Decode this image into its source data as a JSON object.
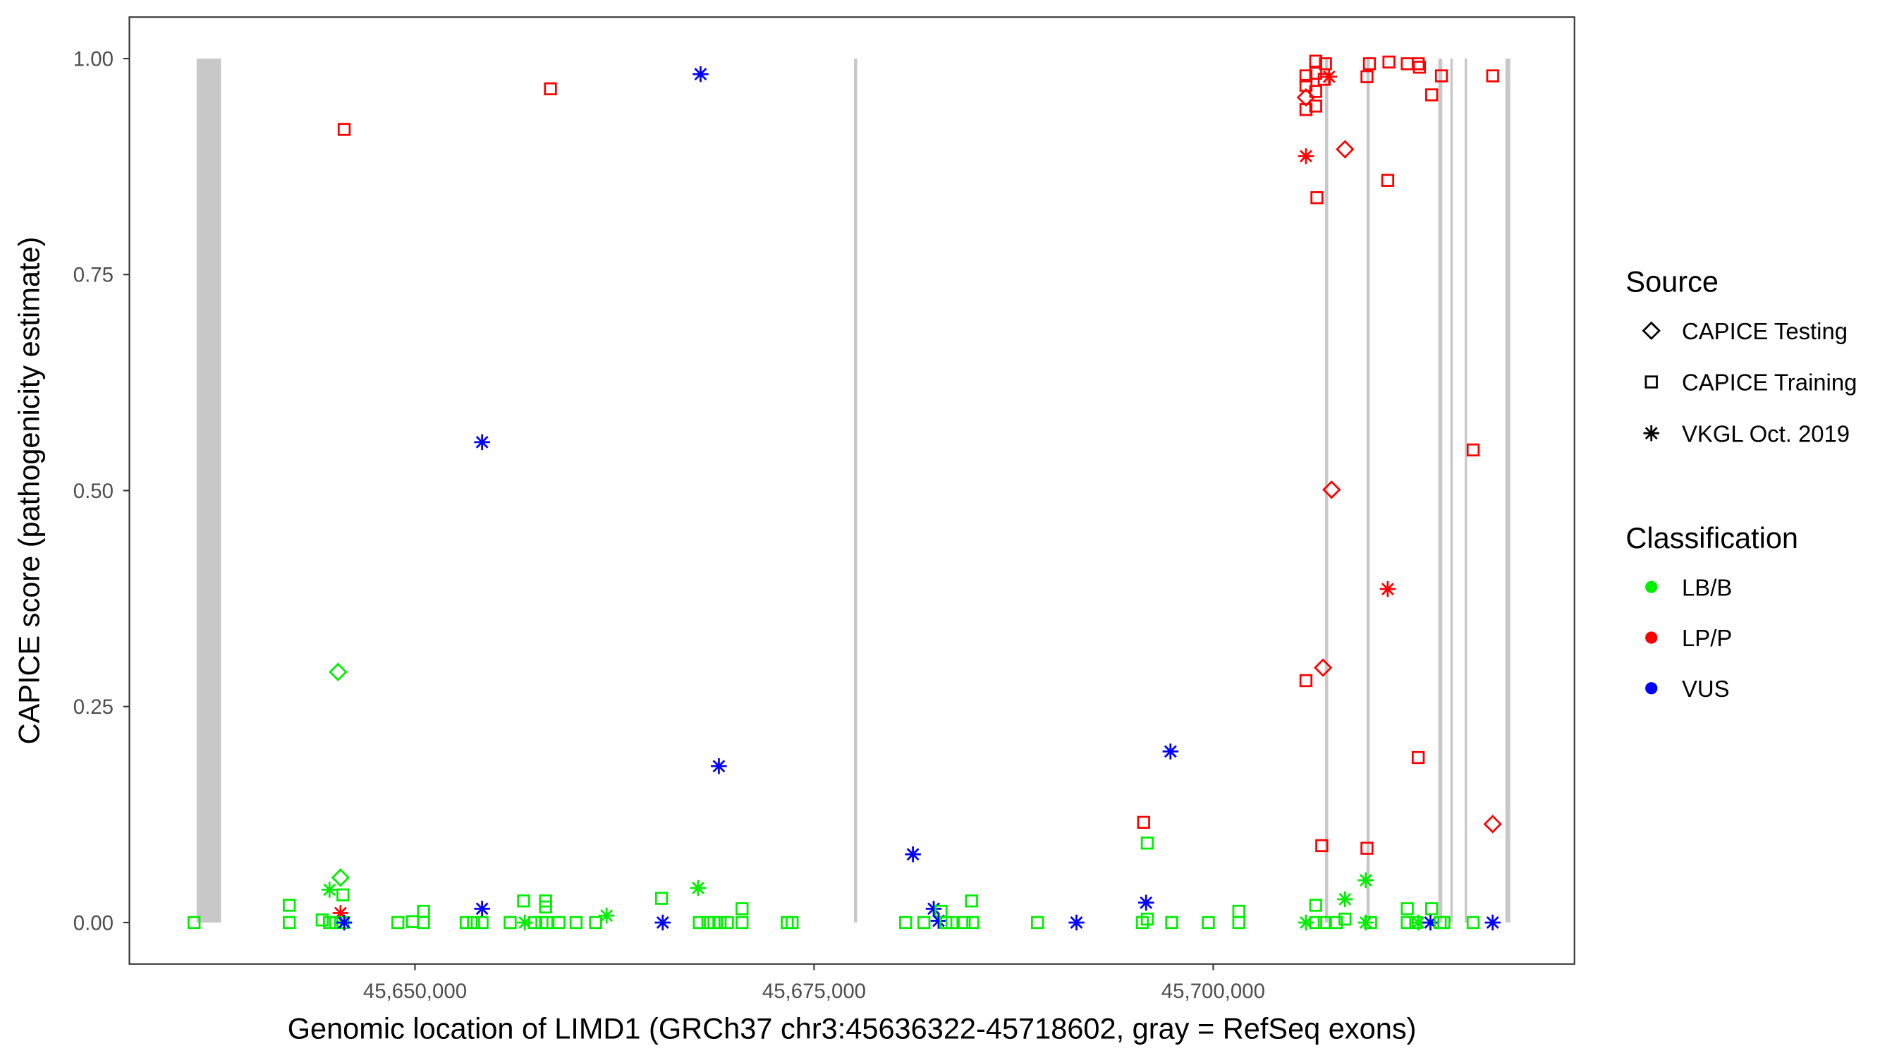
{
  "chart_data": {
    "type": "scatter",
    "xlabel": "Genomic location of LIMD1 (GRCh37 chr3:45636322-45718602, gray = RefSeq exons)",
    "ylabel": "CAPICE score (pathogenicity estimate)",
    "xlim": [
      45632500,
      45723000
    ],
    "ylim": [
      -0.046,
      1.05
    ],
    "x_ticks": [
      45650000,
      45675000,
      45700000
    ],
    "x_tick_labels": [
      "45,650,000",
      "45,675,000",
      "45,700,000"
    ],
    "y_ticks": [
      0,
      0.25,
      0.5,
      0.75,
      1.0
    ],
    "y_tick_labels": [
      "0.00",
      "0.25",
      "0.50",
      "0.75",
      "1.00"
    ],
    "grid": false,
    "exons": [
      [
        45636322,
        45637850
      ],
      [
        45677500,
        45677700
      ],
      [
        45707000,
        45707200
      ],
      [
        45709600,
        45709800
      ],
      [
        45714100,
        45714350
      ],
      [
        45714850,
        45715000
      ],
      [
        45715750,
        45715900
      ],
      [
        45718300,
        45718602
      ]
    ],
    "legend_placement": "right",
    "legend": {
      "source_title": "Source",
      "sources": [
        {
          "key": "Testing",
          "label": "CAPICE Testing",
          "shape": "diamond"
        },
        {
          "key": "Training",
          "label": "CAPICE Training",
          "shape": "square"
        },
        {
          "key": "VKGL",
          "label": "VKGL Oct. 2019",
          "shape": "asterisk"
        }
      ],
      "class_title": "Classification",
      "classes": [
        {
          "key": "LB/B",
          "label": "LB/B",
          "color": "#00EE00"
        },
        {
          "key": "LP/P",
          "label": "LP/P",
          "color": "#FF0000"
        },
        {
          "key": "VUS",
          "label": "VUS",
          "color": "#0000FF"
        }
      ]
    },
    "points": [
      {
        "x": 45645566,
        "y": 0.918,
        "s": "Training",
        "c": "LP/P"
      },
      {
        "x": 45658486,
        "y": 0.965,
        "s": "Training",
        "c": "LP/P"
      },
      {
        "x": 45667889,
        "y": 0.982,
        "s": "VKGL",
        "c": "VUS"
      },
      {
        "x": 45654205,
        "y": 0.556,
        "s": "VKGL",
        "c": "VUS"
      },
      {
        "x": 45645184,
        "y": 0.29,
        "s": "Testing",
        "c": "LB/B"
      },
      {
        "x": 45669036,
        "y": 0.181,
        "s": "VKGL",
        "c": "VUS"
      },
      {
        "x": 45681192,
        "y": 0.079,
        "s": "VKGL",
        "c": "VUS"
      },
      {
        "x": 45697323,
        "y": 0.198,
        "s": "VKGL",
        "c": "VUS"
      },
      {
        "x": 45695641,
        "y": 0.116,
        "s": "Training",
        "c": "LP/P"
      },
      {
        "x": 45695870,
        "y": 0.092,
        "s": "Training",
        "c": "LB/B"
      },
      {
        "x": 45695794,
        "y": 0.023,
        "s": "VKGL",
        "c": "VUS"
      },
      {
        "x": 45705809,
        "y": 0.28,
        "s": "Training",
        "c": "LP/P"
      },
      {
        "x": 45706879,
        "y": 0.295,
        "s": "Testing",
        "c": "LP/P"
      },
      {
        "x": 45707414,
        "y": 0.501,
        "s": "Testing",
        "c": "LP/P"
      },
      {
        "x": 45710931,
        "y": 0.386,
        "s": "VKGL",
        "c": "LP/P"
      },
      {
        "x": 45712842,
        "y": 0.191,
        "s": "Training",
        "c": "LP/P"
      },
      {
        "x": 45716282,
        "y": 0.547,
        "s": "Training",
        "c": "LP/P"
      },
      {
        "x": 45717505,
        "y": 0.114,
        "s": "Testing",
        "c": "LP/P"
      },
      {
        "x": 45706802,
        "y": 0.089,
        "s": "Training",
        "c": "LP/P"
      },
      {
        "x": 45709631,
        "y": 0.086,
        "s": "Training",
        "c": "LP/P"
      },
      {
        "x": 45709555,
        "y": 0.049,
        "s": "VKGL",
        "c": "LB/B"
      },
      {
        "x": 45708255,
        "y": 0.027,
        "s": "VKGL",
        "c": "LB/B"
      },
      {
        "x": 45706420,
        "y": 0.02,
        "s": "Training",
        "c": "LB/B"
      },
      {
        "x": 45712154,
        "y": 0.016,
        "s": "Training",
        "c": "LB/B"
      },
      {
        "x": 45713683,
        "y": 0.016,
        "s": "Training",
        "c": "LB/B"
      },
      {
        "x": 45701604,
        "y": 0.013,
        "s": "Training",
        "c": "LB/B"
      },
      {
        "x": 45682491,
        "y": 0.016,
        "s": "VKGL",
        "c": "VUS"
      },
      {
        "x": 45682950,
        "y": 0.013,
        "s": "Training",
        "c": "LB/B"
      },
      {
        "x": 45684861,
        "y": 0.025,
        "s": "Training",
        "c": "LB/B"
      },
      {
        "x": 45667736,
        "y": 0.04,
        "s": "VKGL",
        "c": "LB/B"
      },
      {
        "x": 45665443,
        "y": 0.028,
        "s": "Training",
        "c": "LB/B"
      },
      {
        "x": 45670489,
        "y": 0.016,
        "s": "Training",
        "c": "LB/B"
      },
      {
        "x": 45654205,
        "y": 0.016,
        "s": "VKGL",
        "c": "VUS"
      },
      {
        "x": 45650535,
        "y": 0.013,
        "s": "Training",
        "c": "LB/B"
      },
      {
        "x": 45656804,
        "y": 0.025,
        "s": "Training",
        "c": "LB/B"
      },
      {
        "x": 45658180,
        "y": 0.025,
        "s": "Training",
        "c": "LB/B"
      },
      {
        "x": 45658180,
        "y": 0.018,
        "s": "Training",
        "c": "LB/B"
      },
      {
        "x": 45642126,
        "y": 0.02,
        "s": "Training",
        "c": "LB/B"
      },
      {
        "x": 45645337,
        "y": 0.052,
        "s": "Testing",
        "c": "LB/B"
      },
      {
        "x": 45644648,
        "y": 0.038,
        "s": "VKGL",
        "c": "LB/B"
      },
      {
        "x": 45645489,
        "y": 0.032,
        "s": "Training",
        "c": "LB/B"
      },
      {
        "x": 45645337,
        "y": 0.011,
        "s": "VKGL",
        "c": "LP/P"
      },
      {
        "x": 45662003,
        "y": 0.008,
        "s": "VKGL",
        "c": "LB/B"
      },
      {
        "x": 45705809,
        "y": 0.98,
        "s": "Training",
        "c": "LP/P"
      },
      {
        "x": 45705809,
        "y": 0.969,
        "s": "Training",
        "c": "LP/P"
      },
      {
        "x": 45706420,
        "y": 0.997,
        "s": "Training",
        "c": "LP/P"
      },
      {
        "x": 45707032,
        "y": 0.994,
        "s": "Training",
        "c": "LP/P"
      },
      {
        "x": 45706420,
        "y": 0.983,
        "s": "Training",
        "c": "LP/P"
      },
      {
        "x": 45706420,
        "y": 0.962,
        "s": "Training",
        "c": "LP/P"
      },
      {
        "x": 45706420,
        "y": 0.945,
        "s": "Training",
        "c": "LP/P"
      },
      {
        "x": 45705809,
        "y": 0.941,
        "s": "Training",
        "c": "LP/P"
      },
      {
        "x": 45706955,
        "y": 0.976,
        "s": "Training",
        "c": "LP/P"
      },
      {
        "x": 45709784,
        "y": 0.994,
        "s": "Training",
        "c": "LP/P"
      },
      {
        "x": 45709631,
        "y": 0.979,
        "s": "Training",
        "c": "LP/P"
      },
      {
        "x": 45711007,
        "y": 0.996,
        "s": "Training",
        "c": "LP/P"
      },
      {
        "x": 45712154,
        "y": 0.994,
        "s": "Training",
        "c": "LP/P"
      },
      {
        "x": 45712842,
        "y": 0.994,
        "s": "Training",
        "c": "LP/P"
      },
      {
        "x": 45712918,
        "y": 0.99,
        "s": "Training",
        "c": "LP/P"
      },
      {
        "x": 45713683,
        "y": 0.958,
        "s": "Training",
        "c": "LP/P"
      },
      {
        "x": 45714295,
        "y": 0.98,
        "s": "Training",
        "c": "LP/P"
      },
      {
        "x": 45717505,
        "y": 0.98,
        "s": "Training",
        "c": "LP/P"
      },
      {
        "x": 45710931,
        "y": 0.859,
        "s": "Training",
        "c": "LP/P"
      },
      {
        "x": 45706497,
        "y": 0.839,
        "s": "Training",
        "c": "LP/P"
      },
      {
        "x": 45705809,
        "y": 0.955,
        "s": "Testing",
        "c": "LP/P"
      },
      {
        "x": 45707261,
        "y": 0.979,
        "s": "VKGL",
        "c": "LP/P"
      },
      {
        "x": 45705809,
        "y": 0.887,
        "s": "VKGL",
        "c": "LP/P"
      },
      {
        "x": 45708255,
        "y": 0.895,
        "s": "Testing",
        "c": "LP/P"
      },
      {
        "x": 45636163,
        "y": 0,
        "s": "Training",
        "c": "LB/B"
      },
      {
        "x": 45642126,
        "y": 0,
        "s": "Training",
        "c": "LB/B"
      },
      {
        "x": 45644190,
        "y": 0.003,
        "s": "Training",
        "c": "LB/B"
      },
      {
        "x": 45644648,
        "y": 0,
        "s": "Training",
        "c": "LB/B"
      },
      {
        "x": 45645031,
        "y": 0,
        "s": "Training",
        "c": "LB/B"
      },
      {
        "x": 45645489,
        "y": 0,
        "s": "Training",
        "c": "LB/B"
      },
      {
        "x": 45645566,
        "y": 0,
        "s": "VKGL",
        "c": "VUS"
      },
      {
        "x": 45648930,
        "y": 0,
        "s": "Training",
        "c": "LB/B"
      },
      {
        "x": 45649847,
        "y": 0.001,
        "s": "Training",
        "c": "LB/B"
      },
      {
        "x": 45650535,
        "y": 0,
        "s": "Training",
        "c": "LB/B"
      },
      {
        "x": 45653211,
        "y": 0,
        "s": "Training",
        "c": "LB/B"
      },
      {
        "x": 45653670,
        "y": 0,
        "s": "Training",
        "c": "LB/B"
      },
      {
        "x": 45654205,
        "y": 0,
        "s": "Training",
        "c": "LB/B"
      },
      {
        "x": 45655963,
        "y": 0,
        "s": "Training",
        "c": "LB/B"
      },
      {
        "x": 45656881,
        "y": 0,
        "s": "VKGL",
        "c": "LB/B"
      },
      {
        "x": 45657492,
        "y": 0,
        "s": "Training",
        "c": "LB/B"
      },
      {
        "x": 45657951,
        "y": 0,
        "s": "Training",
        "c": "LB/B"
      },
      {
        "x": 45658257,
        "y": 0,
        "s": "Training",
        "c": "LB/B"
      },
      {
        "x": 45659021,
        "y": 0,
        "s": "Training",
        "c": "LB/B"
      },
      {
        "x": 45660091,
        "y": 0,
        "s": "Training",
        "c": "LB/B"
      },
      {
        "x": 45661315,
        "y": 0,
        "s": "Training",
        "c": "LB/B"
      },
      {
        "x": 45665519,
        "y": 0,
        "s": "VKGL",
        "c": "VUS"
      },
      {
        "x": 45667813,
        "y": 0,
        "s": "Training",
        "c": "LB/B"
      },
      {
        "x": 45668348,
        "y": 0,
        "s": "Training",
        "c": "LB/B"
      },
      {
        "x": 45668730,
        "y": 0,
        "s": "Training",
        "c": "LB/B"
      },
      {
        "x": 45669113,
        "y": 0,
        "s": "Training",
        "c": "LB/B"
      },
      {
        "x": 45669571,
        "y": 0,
        "s": "Training",
        "c": "LB/B"
      },
      {
        "x": 45670489,
        "y": 0,
        "s": "Training",
        "c": "LB/B"
      },
      {
        "x": 45673317,
        "y": 0,
        "s": "Training",
        "c": "LB/B"
      },
      {
        "x": 45673623,
        "y": 0,
        "s": "Training",
        "c": "LB/B"
      },
      {
        "x": 45680733,
        "y": 0,
        "s": "Training",
        "c": "LB/B"
      },
      {
        "x": 45681880,
        "y": 0,
        "s": "Training",
        "c": "LB/B"
      },
      {
        "x": 45682797,
        "y": 0.002,
        "s": "VKGL",
        "c": "VUS"
      },
      {
        "x": 45683256,
        "y": 0,
        "s": "Training",
        "c": "LB/B"
      },
      {
        "x": 45683638,
        "y": 0,
        "s": "Training",
        "c": "LB/B"
      },
      {
        "x": 45684403,
        "y": 0,
        "s": "Training",
        "c": "LB/B"
      },
      {
        "x": 45684938,
        "y": 0,
        "s": "Training",
        "c": "LB/B"
      },
      {
        "x": 45688990,
        "y": 0,
        "s": "Training",
        "c": "LB/B"
      },
      {
        "x": 45691436,
        "y": 0,
        "s": "VKGL",
        "c": "VUS"
      },
      {
        "x": 45695564,
        "y": 0,
        "s": "Training",
        "c": "LB/B"
      },
      {
        "x": 45695870,
        "y": 0.004,
        "s": "Training",
        "c": "LB/B"
      },
      {
        "x": 45697399,
        "y": 0,
        "s": "Training",
        "c": "LB/B"
      },
      {
        "x": 45699693,
        "y": 0,
        "s": "Training",
        "c": "LB/B"
      },
      {
        "x": 45701604,
        "y": 0,
        "s": "Training",
        "c": "LB/B"
      },
      {
        "x": 45705809,
        "y": 0,
        "s": "VKGL",
        "c": "LB/B"
      },
      {
        "x": 45706420,
        "y": 0,
        "s": "Training",
        "c": "LB/B"
      },
      {
        "x": 45706955,
        "y": 0,
        "s": "Training",
        "c": "LB/B"
      },
      {
        "x": 45707720,
        "y": 0,
        "s": "Training",
        "c": "LB/B"
      },
      {
        "x": 45708255,
        "y": 0.004,
        "s": "Training",
        "c": "LB/B"
      },
      {
        "x": 45709555,
        "y": 0,
        "s": "VKGL",
        "c": "LB/B"
      },
      {
        "x": 45709861,
        "y": 0,
        "s": "Training",
        "c": "LB/B"
      },
      {
        "x": 45712154,
        "y": 0,
        "s": "Training",
        "c": "LB/B"
      },
      {
        "x": 45712689,
        "y": 0,
        "s": "Training",
        "c": "LB/B"
      },
      {
        "x": 45712842,
        "y": 0,
        "s": "VKGL",
        "c": "LB/B"
      },
      {
        "x": 45713606,
        "y": 0,
        "s": "VKGL",
        "c": "VUS"
      },
      {
        "x": 45714218,
        "y": 0,
        "s": "Training",
        "c": "LB/B"
      },
      {
        "x": 45714447,
        "y": 0,
        "s": "Training",
        "c": "LB/B"
      },
      {
        "x": 45716282,
        "y": 0,
        "s": "Training",
        "c": "LB/B"
      },
      {
        "x": 45717505,
        "y": 0,
        "s": "VKGL",
        "c": "VUS"
      }
    ]
  }
}
